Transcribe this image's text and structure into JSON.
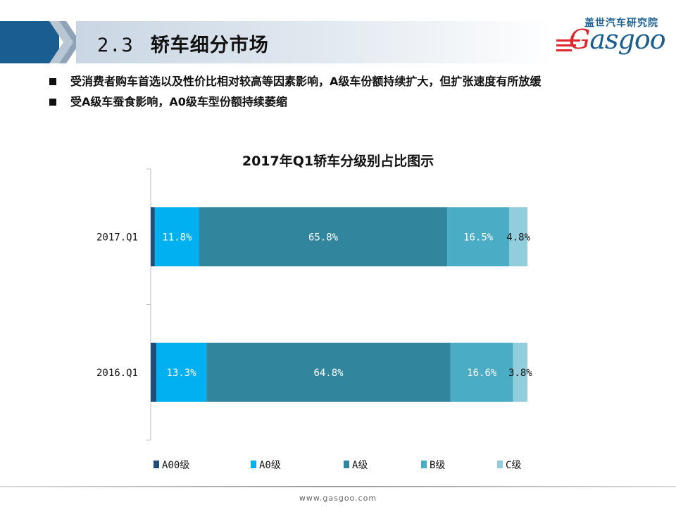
{
  "header": {
    "section_number": "2.3",
    "title": "轿车细分市场"
  },
  "logo": {
    "cn": "盖世汽车研究院",
    "en_first": "G",
    "en_rest": "asgoo"
  },
  "bullets": [
    "受消费者购车首选以及性价比相对较高等因素影响，A级车份额持续扩大，但扩张速度有所放缓",
    "受A级车蚕食影响，A0级车型份额持续萎缩"
  ],
  "chart_data": {
    "type": "bar",
    "orientation": "horizontal",
    "stacked": "percent",
    "title": "2017年Q1轿车分级别占比图示",
    "categories": [
      "2017.Q1",
      "2016.Q1"
    ],
    "series": [
      {
        "name": "A00级",
        "values": [
          1.1,
          1.5
        ],
        "color": "#1f4e79",
        "labels": [
          "",
          ""
        ]
      },
      {
        "name": "A0级",
        "values": [
          11.8,
          13.3
        ],
        "color": "#00b0f0",
        "labels": [
          "11.8%",
          "13.3%"
        ]
      },
      {
        "name": "A级",
        "values": [
          65.8,
          64.8
        ],
        "color": "#31859c",
        "labels": [
          "65.8%",
          "64.8%"
        ]
      },
      {
        "name": "B级",
        "values": [
          16.5,
          16.6
        ],
        "color": "#4bacc6",
        "labels": [
          "16.5%",
          "16.6%"
        ]
      },
      {
        "name": "C级",
        "values": [
          4.8,
          3.8
        ],
        "color": "#92cddc",
        "labels": [
          "4.8%",
          "3.8%"
        ]
      }
    ],
    "xlim": [
      0,
      100
    ],
    "legend_position": "bottom",
    "grid": false
  },
  "footer": {
    "url": "www.gasgoo.com"
  }
}
